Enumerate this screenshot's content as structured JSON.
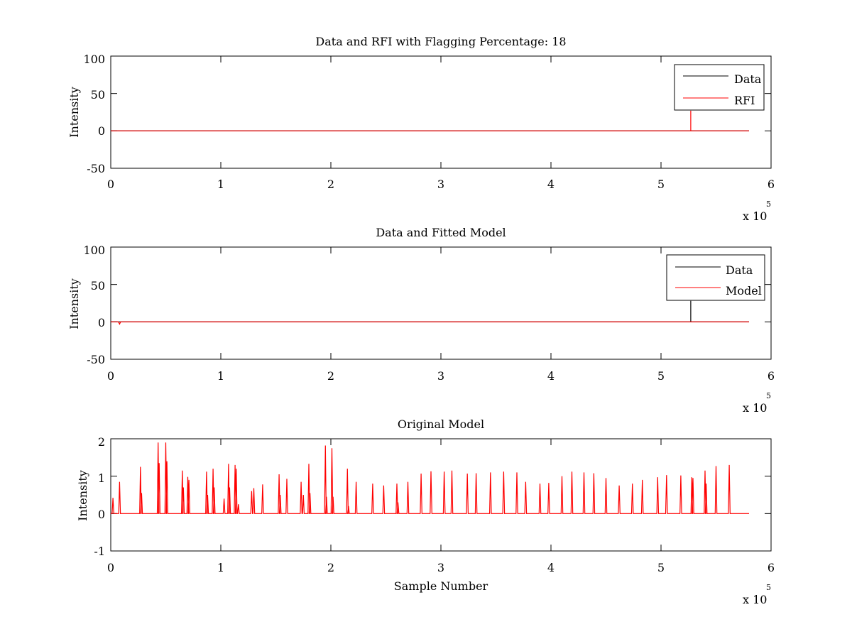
{
  "chart_data": [
    {
      "type": "line",
      "title": "Data and RFI with Flagging Percentage: 18",
      "xlabel": "",
      "ylabel": "Intensity",
      "xlim": [
        0,
        6
      ],
      "ylim": [
        -50,
        100
      ],
      "xticks": [
        "0",
        "1",
        "2",
        "3",
        "4",
        "5",
        "6"
      ],
      "yticks": [
        "100",
        "50",
        "0",
        "-50"
      ],
      "x_multiplier": "x 10",
      "x_exponent": "5",
      "legend_position": "top-right",
      "series": [
        {
          "name": "Data",
          "color": "#000000",
          "x": [
            0.0,
            5.8
          ],
          "y": [
            0,
            0
          ]
        },
        {
          "name": "RFI",
          "color": "#ff0000",
          "x": [
            0.0,
            5.27,
            5.27,
            5.27,
            5.8
          ],
          "y": [
            0,
            0,
            27,
            0,
            0
          ]
        }
      ]
    },
    {
      "type": "line",
      "title": "Data and Fitted Model",
      "xlabel": "",
      "ylabel": "Intensity",
      "xlim": [
        0,
        6
      ],
      "ylim": [
        -50,
        100
      ],
      "xticks": [
        "0",
        "1",
        "2",
        "3",
        "4",
        "5",
        "6"
      ],
      "yticks": [
        "100",
        "50",
        "0",
        "-50"
      ],
      "x_multiplier": "x 10",
      "x_exponent": "5",
      "legend_position": "top-right",
      "series": [
        {
          "name": "Data",
          "color": "#000000",
          "x": [
            0.0,
            5.27,
            5.27,
            5.27,
            5.8
          ],
          "y": [
            0,
            0,
            28,
            0,
            0
          ]
        },
        {
          "name": "Model",
          "color": "#ff0000",
          "x": [
            0.0,
            0.07,
            0.08,
            0.09,
            5.8
          ],
          "y": [
            0,
            0,
            -3,
            0,
            0
          ]
        }
      ]
    },
    {
      "type": "line",
      "title": "Original Model",
      "xlabel": "Sample Number",
      "ylabel": "Intensity",
      "xlim": [
        0,
        6
      ],
      "ylim": [
        -1,
        2
      ],
      "xticks": [
        "0",
        "1",
        "2",
        "3",
        "4",
        "5",
        "6"
      ],
      "yticks": [
        "2",
        "1",
        "0",
        "-1"
      ],
      "x_multiplier": "x 10",
      "x_exponent": "5",
      "legend_position": "none",
      "series": [
        {
          "name": "Model",
          "color": "#ff0000",
          "x_end": 5.8,
          "peaks": [
            [
              0.02,
              0.42
            ],
            [
              0.08,
              0.85
            ],
            [
              0.27,
              1.25
            ],
            [
              0.28,
              0.55
            ],
            [
              0.43,
              1.9
            ],
            [
              0.44,
              1.35
            ],
            [
              0.5,
              1.9
            ],
            [
              0.51,
              1.4
            ],
            [
              0.65,
              1.15
            ],
            [
              0.66,
              0.7
            ],
            [
              0.7,
              0.98
            ],
            [
              0.71,
              0.9
            ],
            [
              0.87,
              1.12
            ],
            [
              0.88,
              0.5
            ],
            [
              0.93,
              1.2
            ],
            [
              0.94,
              0.7
            ],
            [
              1.03,
              0.4
            ],
            [
              1.07,
              1.33
            ],
            [
              1.08,
              0.7
            ],
            [
              1.13,
              1.3
            ],
            [
              1.14,
              1.2
            ],
            [
              1.16,
              0.25
            ],
            [
              1.28,
              0.6
            ],
            [
              1.3,
              0.68
            ],
            [
              1.38,
              0.78
            ],
            [
              1.53,
              1.05
            ],
            [
              1.54,
              0.5
            ],
            [
              1.6,
              0.93
            ],
            [
              1.73,
              0.85
            ],
            [
              1.75,
              0.5
            ],
            [
              1.8,
              1.33
            ],
            [
              1.81,
              0.55
            ],
            [
              1.95,
              1.82
            ],
            [
              1.96,
              0.45
            ],
            [
              2.01,
              1.75
            ],
            [
              2.02,
              0.45
            ],
            [
              2.15,
              1.2
            ],
            [
              2.16,
              0.2
            ],
            [
              2.23,
              0.85
            ],
            [
              2.38,
              0.8
            ],
            [
              2.48,
              0.75
            ],
            [
              2.6,
              0.8
            ],
            [
              2.61,
              0.3
            ],
            [
              2.7,
              0.85
            ],
            [
              2.82,
              1.07
            ],
            [
              2.91,
              1.13
            ],
            [
              3.03,
              1.12
            ],
            [
              3.1,
              1.15
            ],
            [
              3.24,
              1.07
            ],
            [
              3.32,
              1.08
            ],
            [
              3.45,
              1.1
            ],
            [
              3.57,
              1.12
            ],
            [
              3.69,
              1.1
            ],
            [
              3.77,
              0.85
            ],
            [
              3.9,
              0.8
            ],
            [
              3.98,
              0.82
            ],
            [
              4.1,
              1.0
            ],
            [
              4.19,
              1.12
            ],
            [
              4.3,
              1.1
            ],
            [
              4.39,
              1.08
            ],
            [
              4.5,
              0.95
            ],
            [
              4.62,
              0.75
            ],
            [
              4.74,
              0.8
            ],
            [
              4.83,
              0.9
            ],
            [
              4.97,
              0.97
            ],
            [
              5.05,
              1.03
            ],
            [
              5.18,
              1.02
            ],
            [
              5.28,
              0.97
            ],
            [
              5.29,
              0.95
            ],
            [
              5.4,
              1.15
            ],
            [
              5.41,
              0.8
            ],
            [
              5.5,
              1.27
            ],
            [
              5.62,
              1.3
            ]
          ]
        }
      ]
    }
  ],
  "legends": [
    {
      "line1": "Data",
      "line2": "RFI"
    },
    {
      "line1": "Data",
      "line2": "Model"
    }
  ]
}
